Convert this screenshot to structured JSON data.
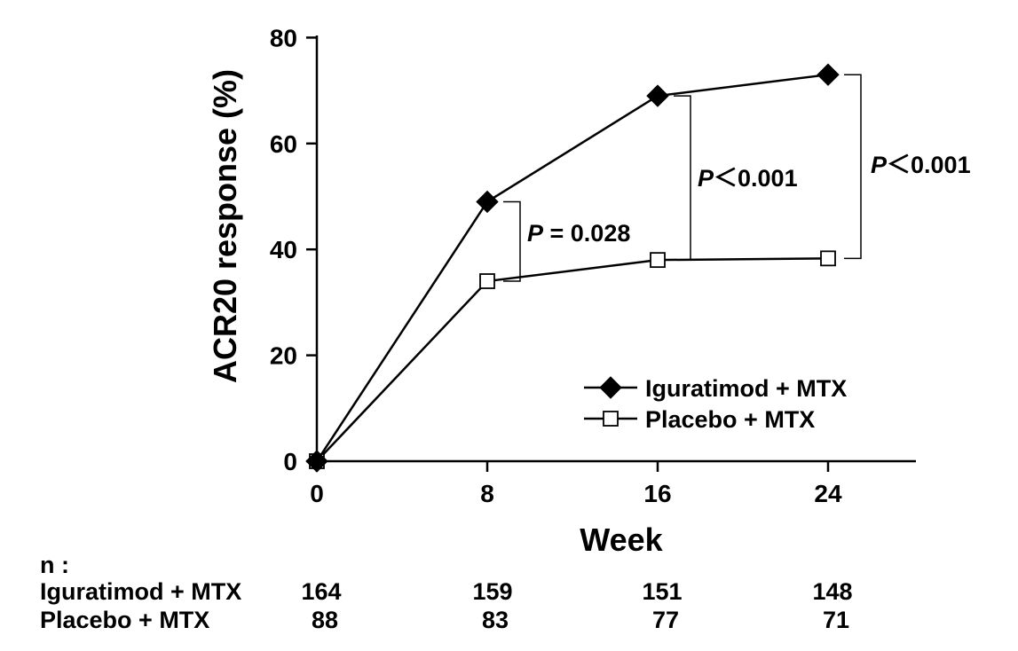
{
  "chart_data": {
    "type": "line",
    "xlabel": "Week",
    "ylabel": "ACR20 response (%)",
    "x": [
      0,
      8,
      16,
      24
    ],
    "xticks": [
      "0",
      "8",
      "16",
      "24"
    ],
    "yticks": [
      "0",
      "20",
      "40",
      "60",
      "80"
    ],
    "xlim": [
      0,
      28
    ],
    "ylim": [
      0,
      80
    ],
    "grid": false,
    "legend_position": "lower-right",
    "series": [
      {
        "name": "Iguratimod + MTX",
        "marker": "filled-diamond",
        "color": "#000000",
        "values": [
          0,
          49,
          69,
          73
        ]
      },
      {
        "name": "Placebo + MTX",
        "marker": "open-square",
        "color": "#000000",
        "values": [
          0,
          34,
          38,
          38.3
        ]
      }
    ],
    "annotations": [
      {
        "x": 8,
        "y_top": 49,
        "y_bottom": 34,
        "prefix": "P",
        "text": " = 0.028"
      },
      {
        "x": 16,
        "y_top": 69,
        "y_bottom": 38,
        "prefix": "P",
        "text": "＜0.001"
      },
      {
        "x": 24,
        "y_top": 73,
        "y_bottom": 38.3,
        "prefix": "P",
        "text": "＜0.001"
      }
    ]
  },
  "n_table": {
    "header": "n :",
    "rows": [
      {
        "label": "Iguratimod + MTX",
        "values": [
          "164",
          "159",
          "151",
          "148"
        ]
      },
      {
        "label": "Placebo + MTX",
        "values": [
          "88",
          "83",
          "77",
          "71"
        ]
      }
    ]
  }
}
